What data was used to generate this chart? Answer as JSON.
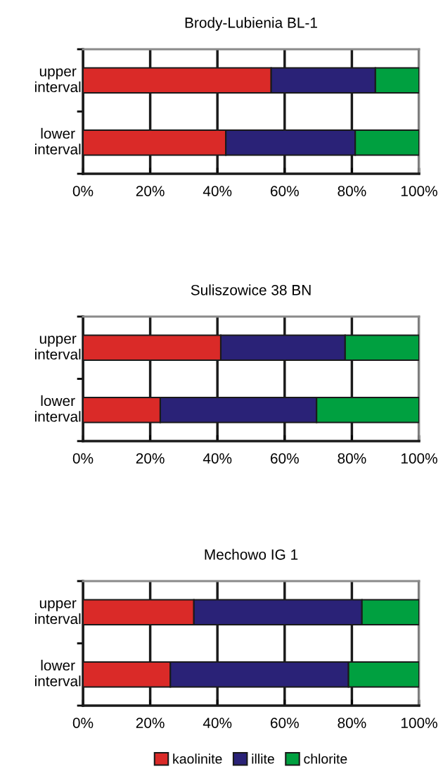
{
  "chart_data": [
    {
      "type": "bar",
      "orientation": "horizontal",
      "stacked": true,
      "title": "Brody-Lubienia BL-1",
      "categories": [
        "upper interval",
        "lower interval"
      ],
      "series": [
        {
          "color": "#da2a28",
          "values": [
            56,
            42.5
          ]
        },
        {
          "color": "#2a2277",
          "values": [
            31,
            38.5
          ]
        },
        {
          "color": "#00a040",
          "values": [
            13,
            19
          ]
        }
      ],
      "xlim": [
        0,
        100
      ],
      "xticks": [
        {
          "value": 0,
          "label": "0%"
        },
        {
          "value": 20,
          "label": "20%"
        },
        {
          "value": 40,
          "label": "40%"
        },
        {
          "value": 60,
          "label": "60%"
        },
        {
          "value": 80,
          "label": "80%"
        },
        {
          "value": 100,
          "label": "100%"
        }
      ],
      "grid": "x"
    },
    {
      "type": "bar",
      "orientation": "horizontal",
      "stacked": true,
      "title": "Suliszowice 38 BN",
      "categories": [
        "upper interval",
        "lower interval"
      ],
      "series": [
        {
          "color": "#da2a28",
          "values": [
            41,
            23
          ]
        },
        {
          "color": "#2a2277",
          "values": [
            37,
            46.5
          ]
        },
        {
          "color": "#00a040",
          "values": [
            22,
            30.5
          ]
        }
      ],
      "xlim": [
        0,
        100
      ],
      "xticks": [
        {
          "value": 0,
          "label": "0%"
        },
        {
          "value": 20,
          "label": "20%"
        },
        {
          "value": 40,
          "label": "40%"
        },
        {
          "value": 60,
          "label": "60%"
        },
        {
          "value": 80,
          "label": "80%"
        },
        {
          "value": 100,
          "label": "100%"
        }
      ],
      "grid": "x"
    },
    {
      "type": "bar",
      "orientation": "horizontal",
      "stacked": true,
      "title": "Mechowo IG 1",
      "categories": [
        "upper interval",
        "lower interval"
      ],
      "series": [
        {
          "name": "kaolinite",
          "color": "#da2a28",
          "values": [
            33,
            26
          ]
        },
        {
          "name": "illite",
          "color": "#2a2277",
          "values": [
            50,
            53
          ]
        },
        {
          "name": "chlorite",
          "color": "#00a040",
          "values": [
            17,
            21
          ]
        }
      ],
      "xlim": [
        0,
        100
      ],
      "xticks": [
        {
          "value": 0,
          "label": "0%"
        },
        {
          "value": 20,
          "label": "20%"
        },
        {
          "value": 40,
          "label": "40%"
        },
        {
          "value": 60,
          "label": "60%"
        },
        {
          "value": 80,
          "label": "80%"
        },
        {
          "value": 100,
          "label": "100%"
        }
      ],
      "grid": "x",
      "legend": "bottom"
    }
  ]
}
